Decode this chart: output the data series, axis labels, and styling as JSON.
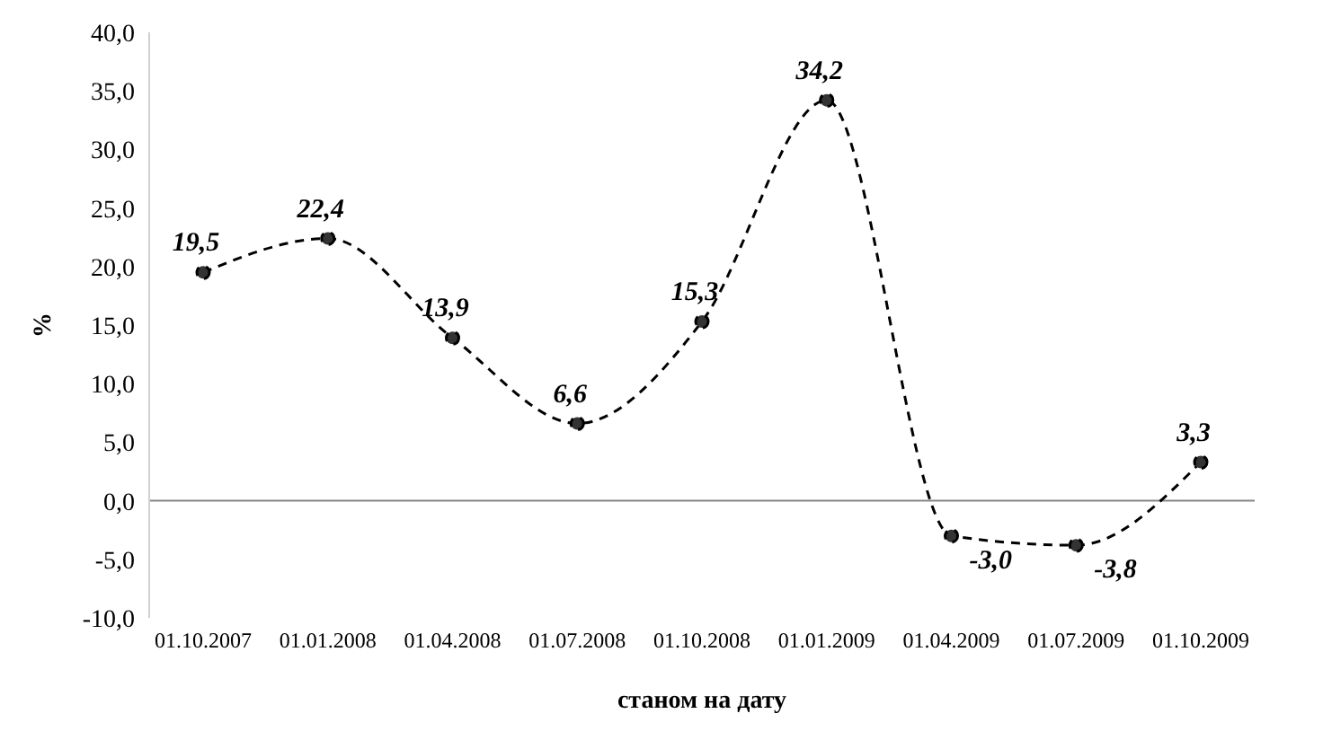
{
  "chart_data": {
    "type": "line",
    "xlabel": "станом на дату",
    "ylabel": "%",
    "categories": [
      "01.10.2007",
      "01.01.2008",
      "01.04.2008",
      "01.07.2008",
      "01.10.2008",
      "01.01.2009",
      "01.04.2009",
      "01.07.2009",
      "01.10.2009"
    ],
    "series": [
      {
        "color": "#000000",
        "values": [
          19.5,
          22.4,
          13.9,
          6.6,
          15.3,
          34.2,
          -3.0,
          -3.8,
          3.3
        ],
        "value_labels": [
          "19,5",
          "22,4",
          "13,9",
          "6,6",
          "15,3",
          "34,2",
          "-3,0",
          "-3,8",
          "3,3"
        ]
      }
    ],
    "ylim": [
      -10,
      40
    ],
    "yticks": [
      {
        "value": -10,
        "label": "-10,0"
      },
      {
        "value": -5,
        "label": "-5,0"
      },
      {
        "value": 0,
        "label": "0,0"
      },
      {
        "value": 5,
        "label": "5,0"
      },
      {
        "value": 10,
        "label": "10,0"
      },
      {
        "value": 15,
        "label": "15,0"
      },
      {
        "value": 20,
        "label": "20,0"
      },
      {
        "value": 25,
        "label": "25,0"
      },
      {
        "value": 30,
        "label": "30,0"
      },
      {
        "value": 35,
        "label": "35,0"
      },
      {
        "value": 40,
        "label": "40,0"
      }
    ],
    "ref_lines": [
      {
        "axis": "y",
        "value": 0,
        "color": "#868686"
      }
    ],
    "grid": false,
    "legend": false,
    "marker": "circle",
    "line_style": "dashed"
  }
}
